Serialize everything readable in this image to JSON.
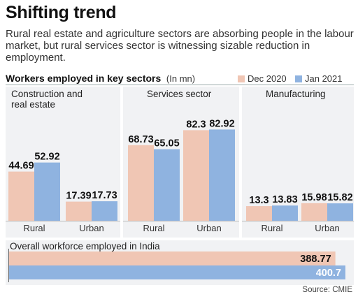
{
  "title": "Shifting trend",
  "subtitle": "Rural real estate and agriculture sectors are absorbing people in the labour market, but rural services sector is witnessing sizable reduction in employment.",
  "legend": {
    "heading": "Workers employed in key sectors",
    "unit": "(In mn)",
    "colors": {
      "Dec 2020": "#f0c6b4",
      "Jan 2021": "#8fb3e0"
    }
  },
  "source": "Source: CMIE",
  "chart_data": [
    {
      "type": "bar",
      "title": "Construction and real estate",
      "categories": [
        "Rural",
        "Urban"
      ],
      "series": [
        {
          "name": "Dec 2020",
          "values": [
            44.69,
            17.39
          ]
        },
        {
          "name": "Jan 2021",
          "values": [
            52.92,
            17.73
          ]
        }
      ]
    },
    {
      "type": "bar",
      "title": "Services sector",
      "categories": [
        "Rural",
        "Urban"
      ],
      "series": [
        {
          "name": "Dec 2020",
          "values": [
            68.73,
            82.3
          ]
        },
        {
          "name": "Jan 2021",
          "values": [
            65.05,
            82.92
          ]
        }
      ]
    },
    {
      "type": "bar",
      "title": "Manufacturing",
      "categories": [
        "Rural",
        "Urban"
      ],
      "series": [
        {
          "name": "Dec 2020",
          "values": [
            13.3,
            15.98
          ]
        },
        {
          "name": "Jan 2021",
          "values": [
            13.83,
            15.82
          ]
        }
      ]
    },
    {
      "type": "bar",
      "orientation": "horizontal",
      "title": "Overall workforce employed in India",
      "series": [
        {
          "name": "Dec 2020",
          "values": [
            388.77
          ]
        },
        {
          "name": "Jan 2021",
          "values": [
            400.7
          ]
        }
      ]
    }
  ]
}
